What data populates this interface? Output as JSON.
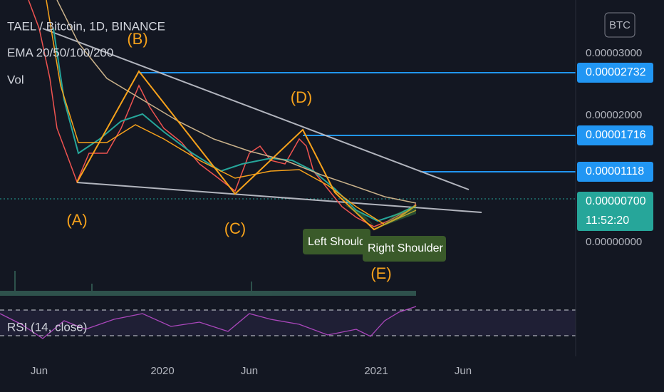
{
  "header": {
    "symbol": "TAEL / Bitcoin, 1D, BINANCE",
    "indicator": "EMA 20/50/100/200",
    "volume": "Vol",
    "currency_button": "BTC"
  },
  "price_axis": [
    "0.00003000",
    "0.00002000",
    "0.00000000"
  ],
  "price_tags": {
    "level_b": "0.00002732",
    "level_d": "0.00001716",
    "level_mid": "0.00001118",
    "last": "0.00000700",
    "countdown": "11:52:20"
  },
  "time_axis": [
    "Jun",
    "2020",
    "Jun",
    "2021",
    "Jun"
  ],
  "annotations": {
    "a": "(A)",
    "b": "(B)",
    "c": "(C)",
    "d": "(D)",
    "e": "(E)",
    "left_shoulder": "Left Shoulder",
    "right_shoulder": "Right Shoulder"
  },
  "rsi": {
    "label": "RSI (14, close)"
  }
}
